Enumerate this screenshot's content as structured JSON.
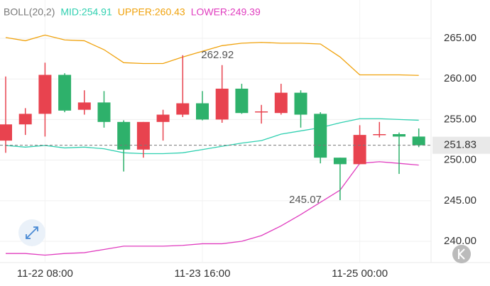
{
  "chart_data": {
    "type": "candlestick",
    "title": "BOLL(20,2)",
    "categories": [
      null,
      null,
      "11-22 08:00",
      null,
      null,
      null,
      null,
      null,
      null,
      null,
      "11-23 16:00",
      null,
      null,
      null,
      null,
      null,
      null,
      null,
      "11-25 00:00",
      null,
      null,
      null
    ],
    "open": [
      252.4,
      254.4,
      255.7,
      260.5,
      256.2,
      257.1,
      254.7,
      251.3,
      254.7,
      255.6,
      257.0,
      255.0,
      258.8,
      255.9,
      255.8,
      258.3,
      255.7,
      250.3,
      249.5,
      253.1,
      253.2,
      252.9
    ],
    "high": [
      260.3,
      256.4,
      262.0,
      260.7,
      258.6,
      258.5,
      254.9,
      254.7,
      256.2,
      262.92,
      258.5,
      261.7,
      259.4,
      256.8,
      259.4,
      258.6,
      255.9,
      250.3,
      254.3,
      254.7,
      253.4,
      253.9
    ],
    "low": [
      250.9,
      253.1,
      252.9,
      255.9,
      255.6,
      254.0,
      248.6,
      250.3,
      252.4,
      255.3,
      254.9,
      254.6,
      255.7,
      254.5,
      255.6,
      254.0,
      249.6,
      245.07,
      249.5,
      252.8,
      248.3,
      251.6
    ],
    "close": [
      254.4,
      255.7,
      260.5,
      256.1,
      257.1,
      254.7,
      251.3,
      254.7,
      255.6,
      257.0,
      255.0,
      258.8,
      255.8,
      256.0,
      258.3,
      255.6,
      250.3,
      249.5,
      253.1,
      253.2,
      252.9,
      251.83
    ],
    "up_color": "#e8434f",
    "down_color": "#2eb16b",
    "series": [
      {
        "name": "MID:254.91",
        "color": "#2fd0b0",
        "values": [
          251.8,
          251.6,
          251.8,
          251.5,
          251.6,
          251.4,
          250.9,
          250.8,
          250.8,
          250.9,
          251.3,
          251.7,
          252.1,
          252.4,
          253.2,
          253.6,
          254.0,
          254.6,
          255.1,
          255.1,
          255.0,
          254.91
        ]
      },
      {
        "name": "UPPER:260.43",
        "color": "#f0a20c",
        "values": [
          265.1,
          264.7,
          265.4,
          264.8,
          264.7,
          263.6,
          262.0,
          261.9,
          261.9,
          262.7,
          263.4,
          264.1,
          264.4,
          264.5,
          264.4,
          264.4,
          264.3,
          262.7,
          260.5,
          260.5,
          260.5,
          260.43
        ]
      },
      {
        "name": "LOWER:249.39",
        "color": "#e03cbf",
        "values": [
          238.5,
          238.5,
          238.3,
          238.5,
          238.6,
          239.0,
          239.4,
          239.4,
          239.4,
          239.5,
          239.7,
          239.7,
          240.0,
          240.7,
          241.9,
          243.3,
          244.8,
          246.3,
          249.6,
          249.8,
          249.6,
          249.39
        ]
      }
    ],
    "ylim": [
      237.38,
      269.72
    ],
    "yticks": [
      {
        "value": 240,
        "label": "240.00"
      },
      {
        "value": 245,
        "label": "245.00"
      },
      {
        "value": 250,
        "label": "250.00"
      },
      {
        "value": 255,
        "label": "255.00"
      },
      {
        "value": 260,
        "label": "260.00"
      },
      {
        "value": 265,
        "label": "265.00"
      }
    ],
    "grid": true
  }
}
